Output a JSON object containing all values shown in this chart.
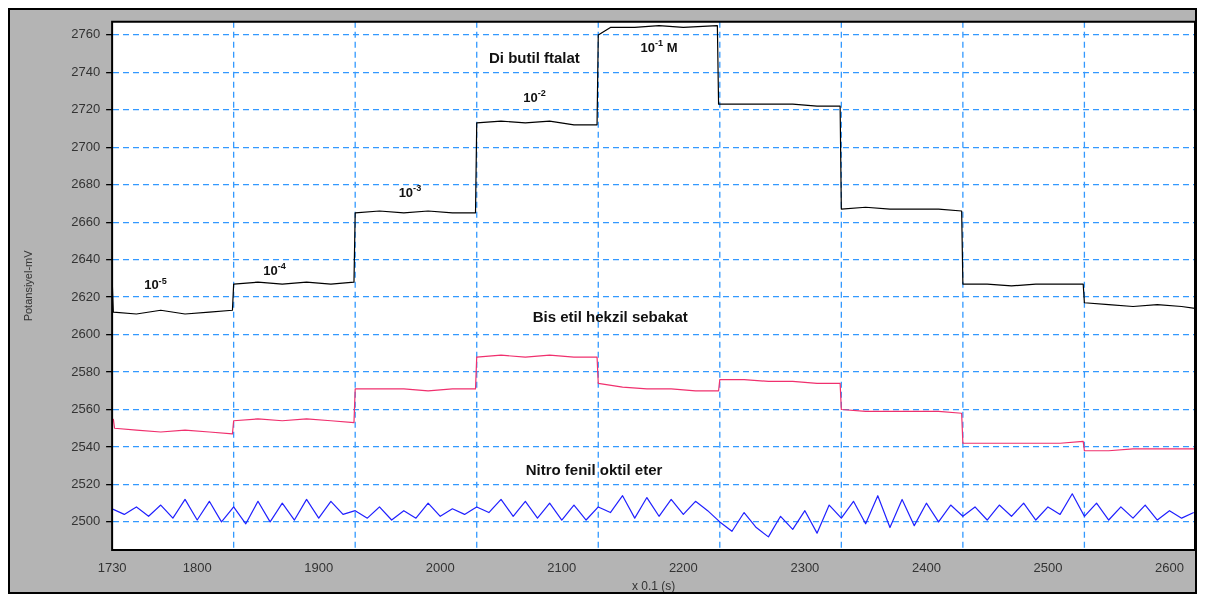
{
  "chart_data": {
    "type": "line",
    "xlabel": "x 0.1 (s)",
    "ylabel": "Potansiyel-mV",
    "xlim": [
      1730,
      2621
    ],
    "xticks": [
      1730,
      1800,
      1900,
      2000,
      2100,
      2200,
      2300,
      2400,
      2500,
      2600
    ],
    "ylim": [
      2485,
      2767
    ],
    "yticks": [
      2500,
      2520,
      2540,
      2560,
      2580,
      2600,
      2620,
      2640,
      2660,
      2680,
      2700,
      2720,
      2740,
      2760
    ],
    "grid": "y",
    "series": [
      {
        "name": "Di butil ftalat",
        "color": "#000000",
        "x": [
          1730,
          1731,
          1750,
          1770,
          1790,
          1810,
          1829,
          1830,
          1850,
          1870,
          1890,
          1910,
          1929,
          1930,
          1950,
          1970,
          1990,
          2010,
          2029,
          2030,
          2050,
          2070,
          2090,
          2110,
          2129,
          2130,
          2140,
          2160,
          2180,
          2200,
          2228,
          2229,
          2250,
          2270,
          2290,
          2310,
          2329,
          2330,
          2350,
          2370,
          2390,
          2410,
          2429,
          2430,
          2450,
          2470,
          2490,
          2510,
          2529,
          2530,
          2550,
          2570,
          2590,
          2610,
          2621
        ],
        "values": [
          2630,
          2612,
          2611,
          2613,
          2611,
          2612,
          2613,
          2627,
          2628,
          2627,
          2628,
          2627,
          2628,
          2665,
          2666,
          2665,
          2666,
          2665,
          2665,
          2713,
          2714,
          2713,
          2714,
          2712,
          2712,
          2760,
          2764,
          2764,
          2765,
          2764,
          2765,
          2723,
          2723,
          2723,
          2723,
          2722,
          2722,
          2667,
          2668,
          2667,
          2667,
          2667,
          2666,
          2627,
          2627,
          2626,
          2627,
          2627,
          2627,
          2617,
          2616,
          2615,
          2616,
          2615,
          2614
        ]
      },
      {
        "name": "Bis etil hekzil sebakat",
        "color": "#f0306e",
        "x": [
          1731,
          1732,
          1750,
          1770,
          1790,
          1810,
          1829,
          1830,
          1850,
          1870,
          1890,
          1910,
          1929,
          1930,
          1950,
          1970,
          1990,
          2010,
          2029,
          2030,
          2050,
          2070,
          2090,
          2110,
          2129,
          2130,
          2150,
          2170,
          2190,
          2210,
          2229,
          2230,
          2250,
          2270,
          2290,
          2310,
          2329,
          2330,
          2350,
          2370,
          2390,
          2410,
          2429,
          2430,
          2450,
          2470,
          2490,
          2510,
          2529,
          2530,
          2550,
          2570,
          2590,
          2610,
          2621
        ],
        "values": [
          2555,
          2550,
          2549,
          2548,
          2549,
          2548,
          2547,
          2554,
          2555,
          2554,
          2555,
          2554,
          2553,
          2571,
          2571,
          2571,
          2570,
          2571,
          2571,
          2588,
          2589,
          2588,
          2589,
          2588,
          2588,
          2574,
          2572,
          2571,
          2571,
          2570,
          2570,
          2576,
          2576,
          2575,
          2575,
          2574,
          2574,
          2560,
          2559,
          2559,
          2559,
          2559,
          2558,
          2542,
          2542,
          2542,
          2542,
          2542,
          2543,
          2538,
          2538,
          2539,
          2539,
          2539,
          2539
        ]
      },
      {
        "name": "Nitro fenil oktil eter",
        "color": "#2020ff",
        "x": [
          1730,
          1740,
          1750,
          1760,
          1770,
          1780,
          1790,
          1800,
          1810,
          1820,
          1830,
          1840,
          1850,
          1860,
          1870,
          1880,
          1890,
          1900,
          1910,
          1920,
          1930,
          1940,
          1950,
          1960,
          1970,
          1980,
          1990,
          2000,
          2010,
          2020,
          2030,
          2040,
          2050,
          2060,
          2070,
          2080,
          2090,
          2100,
          2110,
          2120,
          2130,
          2140,
          2150,
          2160,
          2170,
          2180,
          2190,
          2200,
          2210,
          2220,
          2230,
          2240,
          2250,
          2260,
          2270,
          2280,
          2290,
          2300,
          2310,
          2320,
          2330,
          2340,
          2350,
          2360,
          2370,
          2380,
          2390,
          2400,
          2410,
          2420,
          2430,
          2440,
          2450,
          2460,
          2470,
          2480,
          2490,
          2500,
          2510,
          2520,
          2530,
          2540,
          2550,
          2560,
          2570,
          2580,
          2590,
          2600,
          2610,
          2620
        ],
        "values": [
          2507,
          2504,
          2508,
          2503,
          2509,
          2502,
          2512,
          2501,
          2511,
          2500,
          2508,
          2499,
          2511,
          2500,
          2510,
          2501,
          2512,
          2502,
          2511,
          2504,
          2506,
          2502,
          2508,
          2501,
          2506,
          2502,
          2510,
          2503,
          2507,
          2504,
          2508,
          2505,
          2512,
          2503,
          2511,
          2502,
          2510,
          2501,
          2509,
          2501,
          2508,
          2505,
          2514,
          2502,
          2513,
          2503,
          2512,
          2504,
          2511,
          2506,
          2500,
          2495,
          2505,
          2497,
          2492,
          2503,
          2496,
          2506,
          2494,
          2509,
          2502,
          2511,
          2499,
          2514,
          2497,
          2512,
          2498,
          2510,
          2500,
          2509,
          2503,
          2508,
          2501,
          2509,
          2503,
          2510,
          2501,
          2508,
          2504,
          2515,
          2503,
          2510,
          2501,
          2508,
          2502,
          2509,
          2501,
          2506,
          2502,
          2505
        ]
      }
    ],
    "ref_lines": [
      {
        "axis": "x",
        "value": 1830,
        "color": "#3399ff",
        "line_style": "dashed"
      },
      {
        "axis": "x",
        "value": 1930,
        "color": "#3399ff",
        "line_style": "dashed"
      },
      {
        "axis": "x",
        "value": 2030,
        "color": "#3399ff",
        "line_style": "dashed"
      },
      {
        "axis": "x",
        "value": 2130,
        "color": "#3399ff",
        "line_style": "dashed"
      },
      {
        "axis": "x",
        "value": 2230,
        "color": "#3399ff",
        "line_style": "dashed"
      },
      {
        "axis": "x",
        "value": 2330,
        "color": "#3399ff",
        "line_style": "dashed"
      },
      {
        "axis": "x",
        "value": 2430,
        "color": "#3399ff",
        "line_style": "dashed"
      },
      {
        "axis": "x",
        "value": 2530,
        "color": "#3399ff",
        "line_style": "dashed"
      }
    ],
    "annotations": [
      "10$^{-5}$",
      "10$^{-4}$",
      "10$^{-3}$",
      "10$^{-2}$",
      "10$^{-1}$ M"
    ]
  }
}
